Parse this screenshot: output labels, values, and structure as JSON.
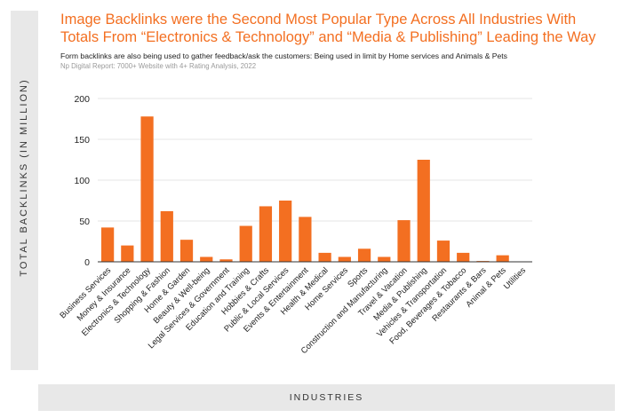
{
  "colors": {
    "accent": "#f36f21",
    "bar": "#f36f21",
    "band": "#e8e8e8",
    "gridline": "#e6e6e6"
  },
  "header": {
    "title": "Image Backlinks were the Second Most Popular Type Across All Industries With Totals From “Electronics & Technology” and “Media & Publishing” Leading the Way",
    "subtitle": "Form backlinks are also being used to gather feedback/ask the customers: Being used in limit by Home services and Animals & Pets",
    "source": "Np Digital Report: 7000+ Website with 4+ Rating Analysis, 2022"
  },
  "chart_data": {
    "type": "bar",
    "title": "Image Backlinks were the Second Most Popular Type Across All Industries With Totals From “Electronics & Technology” and “Media & Publishing” Leading the Way",
    "subtitle": "Form backlinks are also being used to gather feedback/ask the customers: Being used in limit by Home services and Animals & Pets",
    "xlabel": "INDUSTRIES",
    "ylabel": "TOTAL BACKLINKS (IN MILLION)",
    "ylim": [
      0,
      200
    ],
    "yticks": [
      0,
      50,
      100,
      150,
      200
    ],
    "grid": true,
    "legend": "none",
    "categories": [
      "Business Services",
      "Money & Insurance",
      "Electronics & Technology",
      "Shopping & Fashion",
      "Home & Garden",
      "Beauty & Well-being",
      "Legal Services & Government",
      "Education and Training",
      "Hobbies & Crafts",
      "Public & Local Services",
      "Events & Entertainment",
      "Health & Medical",
      "Home Services",
      "Sports",
      "Construction and Manufacturing",
      "Travel & Vacation",
      "Media & Publishing",
      "Vehicles & Transportation",
      "Food, Beverages & Tobacco",
      "Restaurants & Bars",
      "Animal & Pets",
      "Utilities"
    ],
    "values": [
      42,
      20,
      178,
      62,
      27,
      6,
      3,
      44,
      68,
      75,
      55,
      11,
      6,
      16,
      6,
      51,
      125,
      26,
      11,
      1,
      8,
      0
    ]
  }
}
